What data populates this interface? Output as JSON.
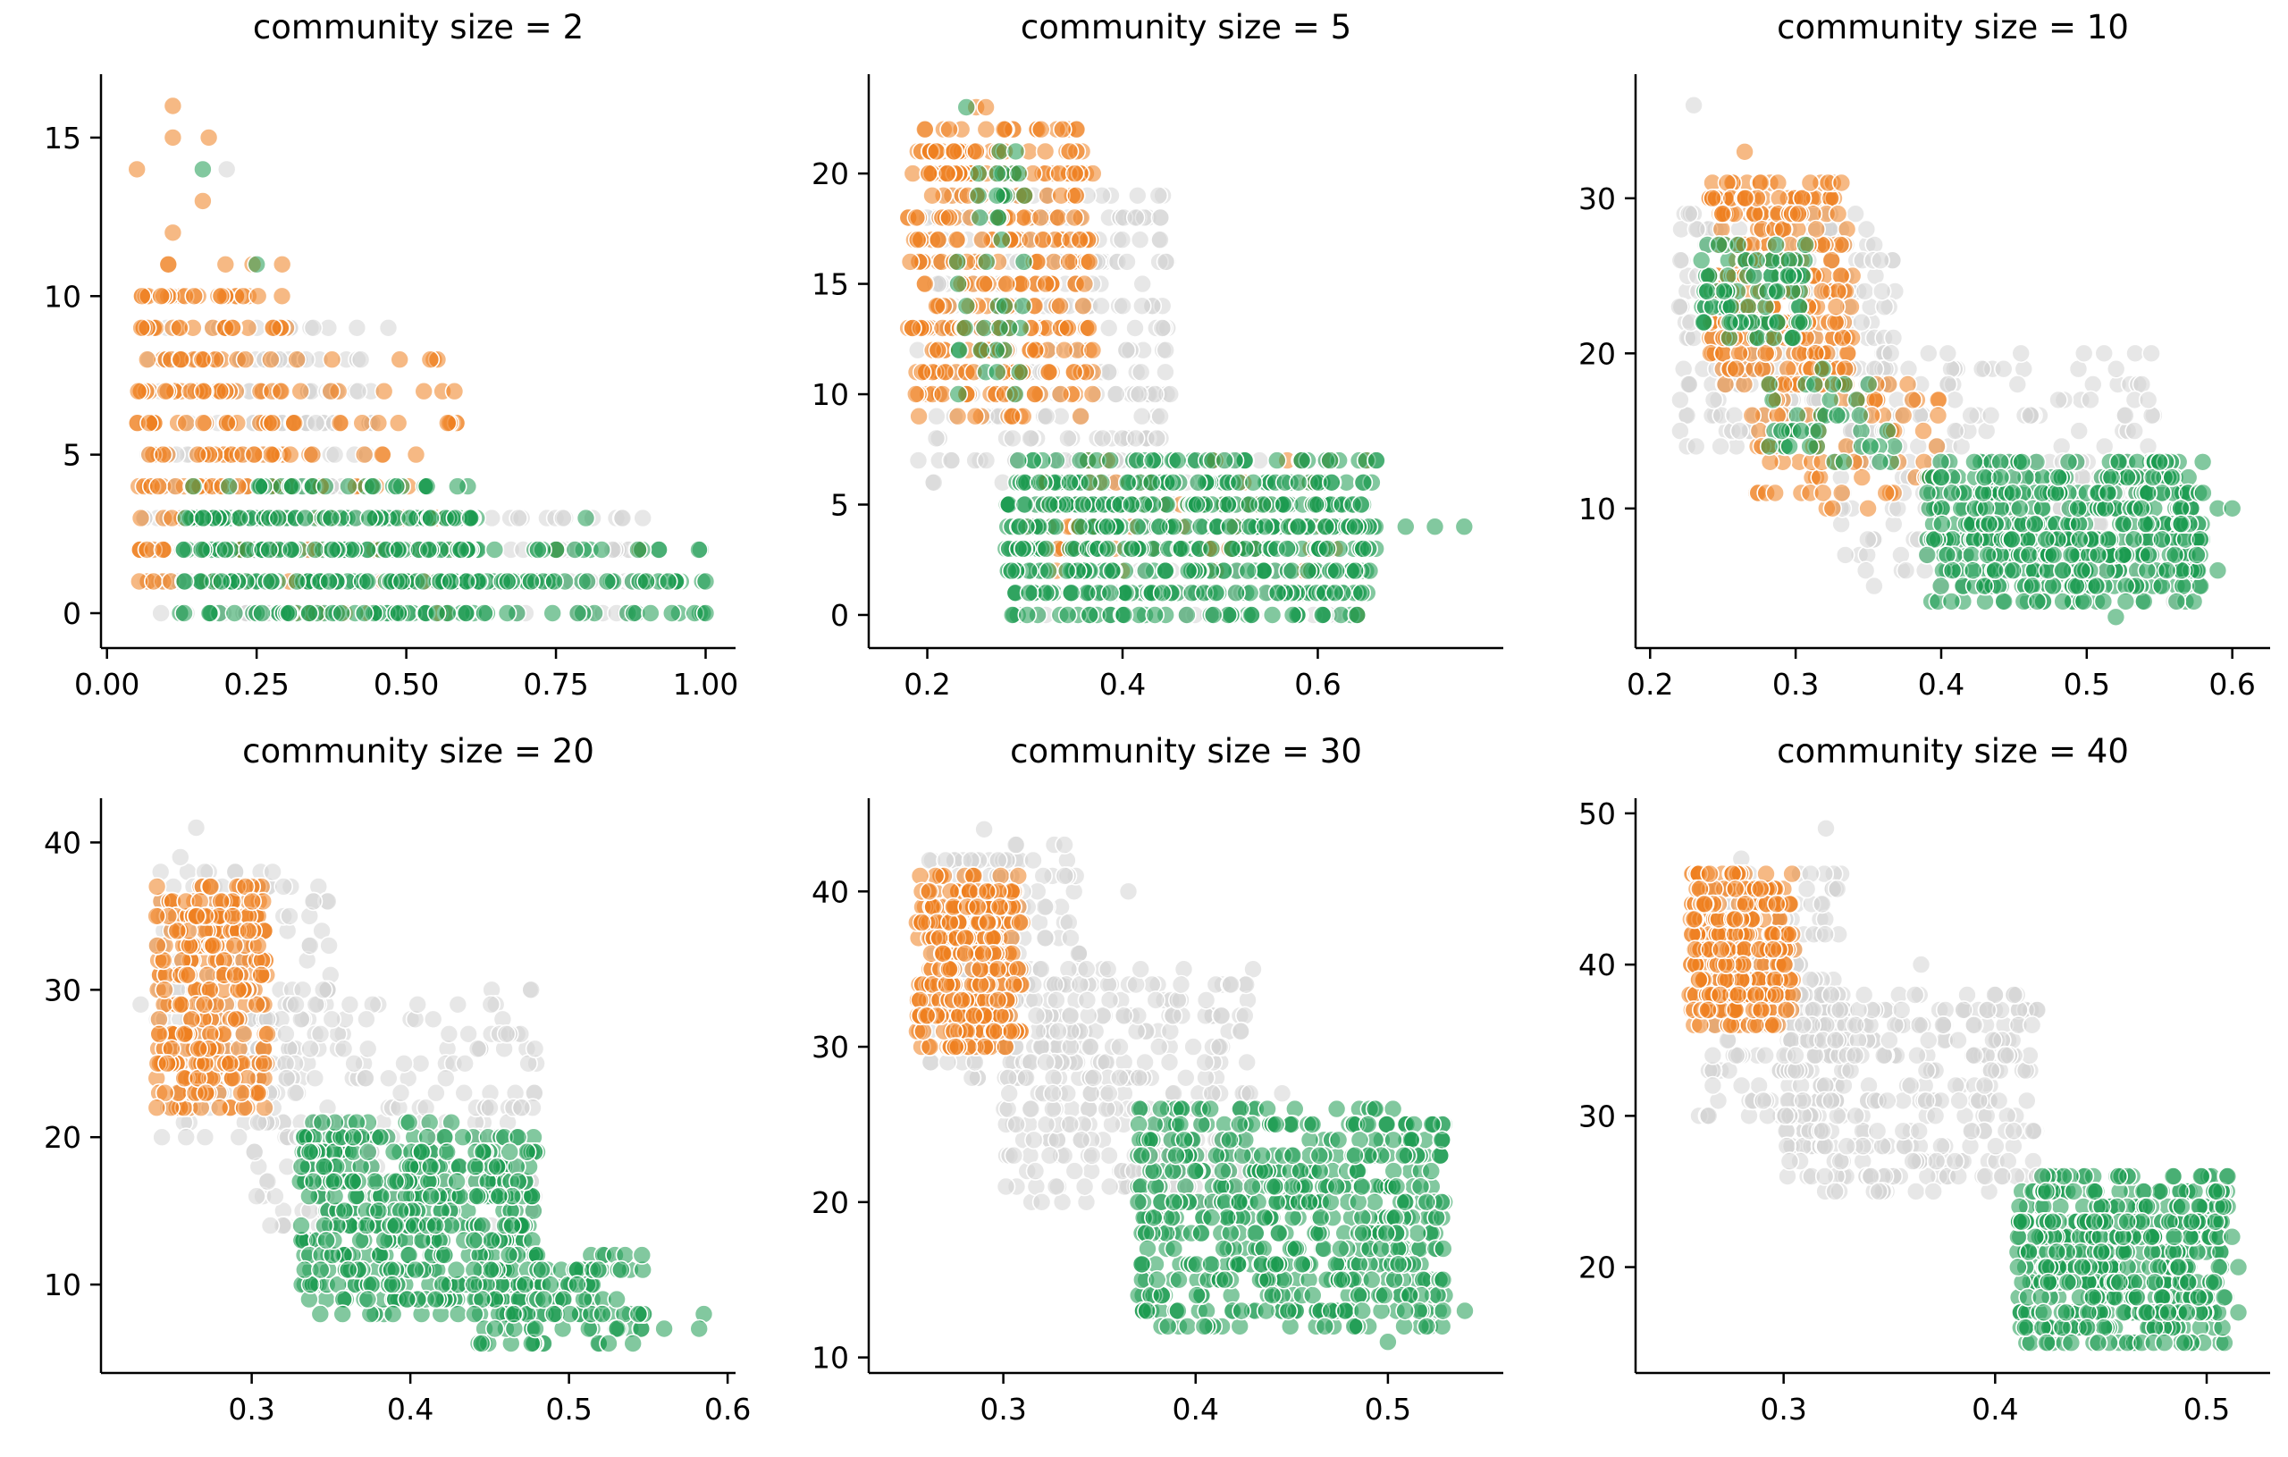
{
  "colors": {
    "gray": "#d3d3d3",
    "orange": "#ee7f1f",
    "green": "#1c9a50"
  },
  "chart_data": [
    {
      "type": "scatter",
      "title": "community size = 2",
      "xlim": [
        -0.01,
        1.05
      ],
      "ylim": [
        -1.1,
        17
      ],
      "xticks": [
        0.0,
        0.25,
        0.5,
        0.75,
        1.0
      ],
      "xtick_labels": [
        "0.00",
        "0.25",
        "0.50",
        "0.75",
        "1.00"
      ],
      "yticks": [
        0,
        5,
        10,
        15
      ],
      "ytick_labels": [
        "0",
        "5",
        "10",
        "15"
      ],
      "clusters": [
        {
          "group": "gray",
          "x": [
            0.06,
            0.45
          ],
          "y": [
            0,
            9
          ],
          "n": 260
        },
        {
          "group": "gray",
          "x": [
            0.45,
            0.9
          ],
          "y": [
            0,
            3
          ],
          "n": 90
        },
        {
          "group": "orange",
          "x": [
            0.05,
            0.3
          ],
          "y": [
            1,
            11
          ],
          "n": 220
        },
        {
          "group": "orange",
          "x": [
            0.3,
            0.6
          ],
          "y": [
            0,
            8
          ],
          "n": 80
        },
        {
          "group": "green",
          "x": [
            0.12,
            0.62
          ],
          "y": [
            0,
            4
          ],
          "n": 300
        },
        {
          "group": "green",
          "x": [
            0.55,
            1.0
          ],
          "y": [
            0,
            2
          ],
          "n": 90
        }
      ],
      "points": [
        {
          "group": "orange",
          "x": 0.11,
          "y": 16
        },
        {
          "group": "orange",
          "x": 0.11,
          "y": 15
        },
        {
          "group": "orange",
          "x": 0.17,
          "y": 15
        },
        {
          "group": "orange",
          "x": 0.05,
          "y": 14
        },
        {
          "group": "gray",
          "x": 0.2,
          "y": 14
        },
        {
          "group": "green",
          "x": 0.16,
          "y": 14
        },
        {
          "group": "orange",
          "x": 0.16,
          "y": 13
        },
        {
          "group": "orange",
          "x": 0.11,
          "y": 12
        },
        {
          "group": "green",
          "x": 0.25,
          "y": 11
        },
        {
          "group": "gray",
          "x": 0.47,
          "y": 9
        },
        {
          "group": "orange",
          "x": 0.54,
          "y": 8
        },
        {
          "group": "orange",
          "x": 0.89,
          "y": 2
        },
        {
          "group": "orange",
          "x": 0.9,
          "y": 1
        },
        {
          "group": "green",
          "x": 1.0,
          "y": 1
        },
        {
          "group": "green",
          "x": 1.0,
          "y": 0
        },
        {
          "group": "green",
          "x": 0.8,
          "y": 3
        },
        {
          "group": "orange",
          "x": 0.75,
          "y": 2
        }
      ]
    },
    {
      "type": "scatter",
      "title": "community size = 5",
      "xlim": [
        0.14,
        0.79
      ],
      "ylim": [
        -1.5,
        24.5
      ],
      "xticks": [
        0.2,
        0.4,
        0.6
      ],
      "xtick_labels": [
        "0.2",
        "0.4",
        "0.6"
      ],
      "yticks": [
        0,
        5,
        10,
        15,
        20
      ],
      "ytick_labels": [
        "0",
        "5",
        "10",
        "15",
        "20"
      ],
      "clusters": [
        {
          "group": "gray",
          "x": [
            0.19,
            0.45
          ],
          "y": [
            6,
            19
          ],
          "n": 260
        },
        {
          "group": "gray",
          "x": [
            0.3,
            0.62
          ],
          "y": [
            0,
            7
          ],
          "n": 220
        },
        {
          "group": "orange",
          "x": [
            0.18,
            0.37
          ],
          "y": [
            9,
            22
          ],
          "n": 340
        },
        {
          "group": "orange",
          "x": [
            0.3,
            0.62
          ],
          "y": [
            2,
            7
          ],
          "n": 90
        },
        {
          "group": "green",
          "x": [
            0.23,
            0.3
          ],
          "y": [
            10,
            22
          ],
          "n": 40
        },
        {
          "group": "green",
          "x": [
            0.28,
            0.66
          ],
          "y": [
            0,
            7
          ],
          "n": 520
        }
      ],
      "points": [
        {
          "group": "orange",
          "x": 0.25,
          "y": 23
        },
        {
          "group": "orange",
          "x": 0.26,
          "y": 23
        },
        {
          "group": "green",
          "x": 0.24,
          "y": 23
        },
        {
          "group": "green",
          "x": 0.69,
          "y": 4
        },
        {
          "group": "green",
          "x": 0.72,
          "y": 4
        },
        {
          "group": "green",
          "x": 0.75,
          "y": 4
        },
        {
          "group": "orange",
          "x": 0.64,
          "y": 0
        },
        {
          "group": "orange",
          "x": 0.65,
          "y": 7
        },
        {
          "group": "green",
          "x": 0.66,
          "y": 7
        },
        {
          "group": "gray",
          "x": 0.42,
          "y": 14
        }
      ]
    },
    {
      "type": "scatter",
      "title": "community size = 10",
      "xlim": [
        0.19,
        0.626
      ],
      "ylim": [
        1,
        38
      ],
      "xticks": [
        0.2,
        0.3,
        0.4,
        0.5,
        0.6
      ],
      "xtick_labels": [
        "0.2",
        "0.3",
        "0.4",
        "0.5",
        "0.6"
      ],
      "yticks": [
        10,
        20,
        30
      ],
      "ytick_labels": [
        "10",
        "20",
        "30"
      ],
      "clusters": [
        {
          "group": "gray",
          "x": [
            0.22,
            0.37
          ],
          "y": [
            14,
            29
          ],
          "n": 240
        },
        {
          "group": "gray",
          "x": [
            0.33,
            0.55
          ],
          "y": [
            5,
            20
          ],
          "n": 200
        },
        {
          "group": "orange",
          "x": [
            0.24,
            0.34
          ],
          "y": [
            18,
            31
          ],
          "n": 260
        },
        {
          "group": "orange",
          "x": [
            0.27,
            0.4
          ],
          "y": [
            10,
            20
          ],
          "n": 80
        },
        {
          "group": "green",
          "x": [
            0.235,
            0.31
          ],
          "y": [
            21,
            27
          ],
          "n": 90
        },
        {
          "group": "green",
          "x": [
            0.28,
            0.37
          ],
          "y": [
            13,
            19
          ],
          "n": 40
        },
        {
          "group": "green",
          "x": [
            0.39,
            0.58
          ],
          "y": [
            4,
            13
          ],
          "n": 480
        }
      ],
      "points": [
        {
          "group": "gray",
          "x": 0.23,
          "y": 36
        },
        {
          "group": "orange",
          "x": 0.265,
          "y": 33
        },
        {
          "group": "orange",
          "x": 0.31,
          "y": 31
        },
        {
          "group": "gray",
          "x": 0.22,
          "y": 23
        },
        {
          "group": "green",
          "x": 0.59,
          "y": 10
        },
        {
          "group": "green",
          "x": 0.6,
          "y": 10
        },
        {
          "group": "green",
          "x": 0.59,
          "y": 6
        },
        {
          "group": "green",
          "x": 0.55,
          "y": 13
        },
        {
          "group": "gray",
          "x": 0.56,
          "y": 4
        },
        {
          "group": "green",
          "x": 0.52,
          "y": 3
        }
      ]
    },
    {
      "type": "scatter",
      "title": "community size = 20",
      "xlim": [
        0.205,
        0.605
      ],
      "ylim": [
        4,
        43
      ],
      "xticks": [
        0.3,
        0.4,
        0.5,
        0.6
      ],
      "xtick_labels": [
        "0.3",
        "0.4",
        "0.5",
        "0.6"
      ],
      "yticks": [
        10,
        20,
        30,
        40
      ],
      "ytick_labels": [
        "10",
        "20",
        "30",
        "40"
      ],
      "clusters": [
        {
          "group": "gray",
          "x": [
            0.24,
            0.35
          ],
          "y": [
            20,
            38
          ],
          "n": 170
        },
        {
          "group": "gray",
          "x": [
            0.3,
            0.48
          ],
          "y": [
            14,
            30
          ],
          "n": 200
        },
        {
          "group": "orange",
          "x": [
            0.24,
            0.31
          ],
          "y": [
            22,
            37
          ],
          "n": 300
        },
        {
          "group": "green",
          "x": [
            0.33,
            0.48
          ],
          "y": [
            8,
            21
          ],
          "n": 460
        },
        {
          "group": "green",
          "x": [
            0.44,
            0.55
          ],
          "y": [
            6,
            12
          ],
          "n": 120
        }
      ],
      "points": [
        {
          "group": "gray",
          "x": 0.265,
          "y": 41
        },
        {
          "group": "gray",
          "x": 0.255,
          "y": 39
        },
        {
          "group": "orange",
          "x": 0.24,
          "y": 35
        },
        {
          "group": "gray",
          "x": 0.23,
          "y": 29
        },
        {
          "group": "gray",
          "x": 0.31,
          "y": 17
        },
        {
          "group": "green",
          "x": 0.585,
          "y": 8
        },
        {
          "group": "green",
          "x": 0.582,
          "y": 7
        },
        {
          "group": "green",
          "x": 0.525,
          "y": 6
        },
        {
          "group": "green",
          "x": 0.56,
          "y": 7
        },
        {
          "group": "gray",
          "x": 0.465,
          "y": 22
        },
        {
          "group": "gray",
          "x": 0.47,
          "y": 22
        }
      ]
    },
    {
      "type": "scatter",
      "title": "community size = 30",
      "xlim": [
        0.23,
        0.56
      ],
      "ylim": [
        9,
        46
      ],
      "xticks": [
        0.3,
        0.4,
        0.5
      ],
      "xtick_labels": [
        "0.3",
        "0.4",
        "0.5"
      ],
      "yticks": [
        10,
        20,
        30,
        40
      ],
      "ytick_labels": [
        "10",
        "20",
        "30",
        "40"
      ],
      "clusters": [
        {
          "group": "gray",
          "x": [
            0.26,
            0.34
          ],
          "y": [
            28,
            43
          ],
          "n": 160
        },
        {
          "group": "gray",
          "x": [
            0.3,
            0.43
          ],
          "y": [
            20,
            35
          ],
          "n": 300
        },
        {
          "group": "orange",
          "x": [
            0.255,
            0.31
          ],
          "y": [
            30,
            41
          ],
          "n": 320
        },
        {
          "group": "green",
          "x": [
            0.37,
            0.53
          ],
          "y": [
            12,
            26
          ],
          "n": 560
        }
      ],
      "points": [
        {
          "group": "gray",
          "x": 0.29,
          "y": 44
        },
        {
          "group": "gray",
          "x": 0.365,
          "y": 40
        },
        {
          "group": "orange",
          "x": 0.275,
          "y": 30
        },
        {
          "group": "gray",
          "x": 0.32,
          "y": 20
        },
        {
          "group": "green",
          "x": 0.5,
          "y": 11
        },
        {
          "group": "green",
          "x": 0.54,
          "y": 13
        },
        {
          "group": "green",
          "x": 0.38,
          "y": 15
        },
        {
          "group": "green",
          "x": 0.372,
          "y": 16
        },
        {
          "group": "gray",
          "x": 0.445,
          "y": 27
        }
      ]
    },
    {
      "type": "scatter",
      "title": "community size = 40",
      "xlim": [
        0.23,
        0.53
      ],
      "ylim": [
        13,
        51
      ],
      "xticks": [
        0.3,
        0.4,
        0.5
      ],
      "xtick_labels": [
        "0.3",
        "0.4",
        "0.5"
      ],
      "yticks": [
        20,
        30,
        40,
        50
      ],
      "ytick_labels": [
        "20",
        "30",
        "40",
        "50"
      ],
      "clusters": [
        {
          "group": "gray",
          "x": [
            0.26,
            0.33
          ],
          "y": [
            30,
            46
          ],
          "n": 200
        },
        {
          "group": "gray",
          "x": [
            0.3,
            0.42
          ],
          "y": [
            25,
            38
          ],
          "n": 320
        },
        {
          "group": "orange",
          "x": [
            0.255,
            0.305
          ],
          "y": [
            36,
            46
          ],
          "n": 300
        },
        {
          "group": "green",
          "x": [
            0.41,
            0.51
          ],
          "y": [
            15,
            26
          ],
          "n": 480
        }
      ],
      "points": [
        {
          "group": "gray",
          "x": 0.32,
          "y": 49
        },
        {
          "group": "gray",
          "x": 0.28,
          "y": 47
        },
        {
          "group": "gray",
          "x": 0.265,
          "y": 44
        },
        {
          "group": "gray",
          "x": 0.365,
          "y": 40
        },
        {
          "group": "gray",
          "x": 0.395,
          "y": 32
        },
        {
          "group": "gray",
          "x": 0.405,
          "y": 34
        },
        {
          "group": "green",
          "x": 0.515,
          "y": 17
        },
        {
          "group": "green",
          "x": 0.515,
          "y": 20
        },
        {
          "group": "green",
          "x": 0.512,
          "y": 22
        },
        {
          "group": "green",
          "x": 0.475,
          "y": 15
        },
        {
          "group": "green",
          "x": 0.48,
          "y": 15
        },
        {
          "group": "gray",
          "x": 0.42,
          "y": 22
        },
        {
          "group": "gray",
          "x": 0.345,
          "y": 25
        }
      ]
    }
  ]
}
